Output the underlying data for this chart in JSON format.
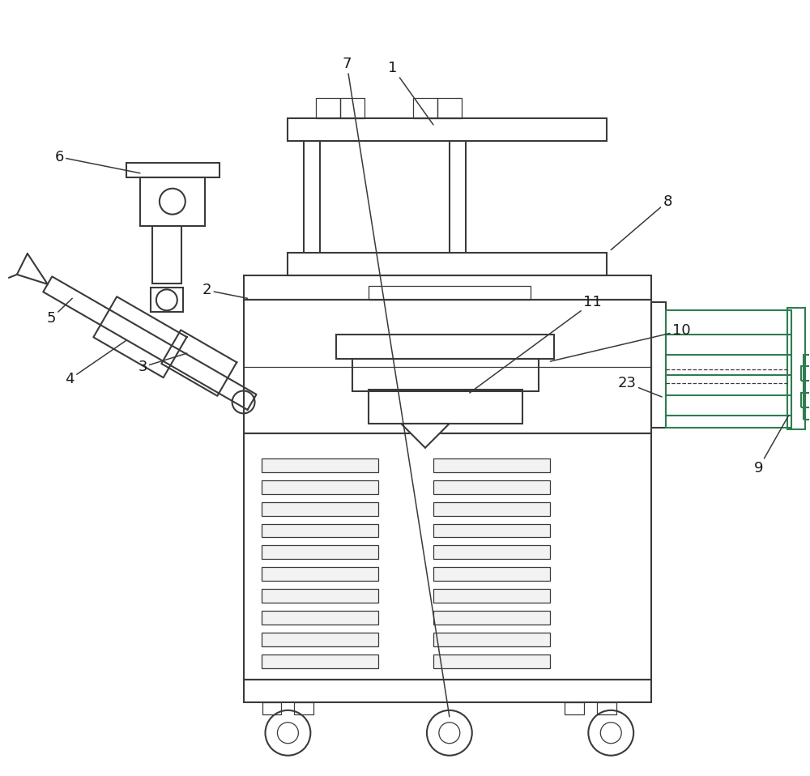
{
  "bg_color": "#ffffff",
  "lc": "#3a3a3a",
  "gc": "#2e7d4f",
  "lw": 1.5,
  "tlw": 0.9,
  "fs": 13
}
